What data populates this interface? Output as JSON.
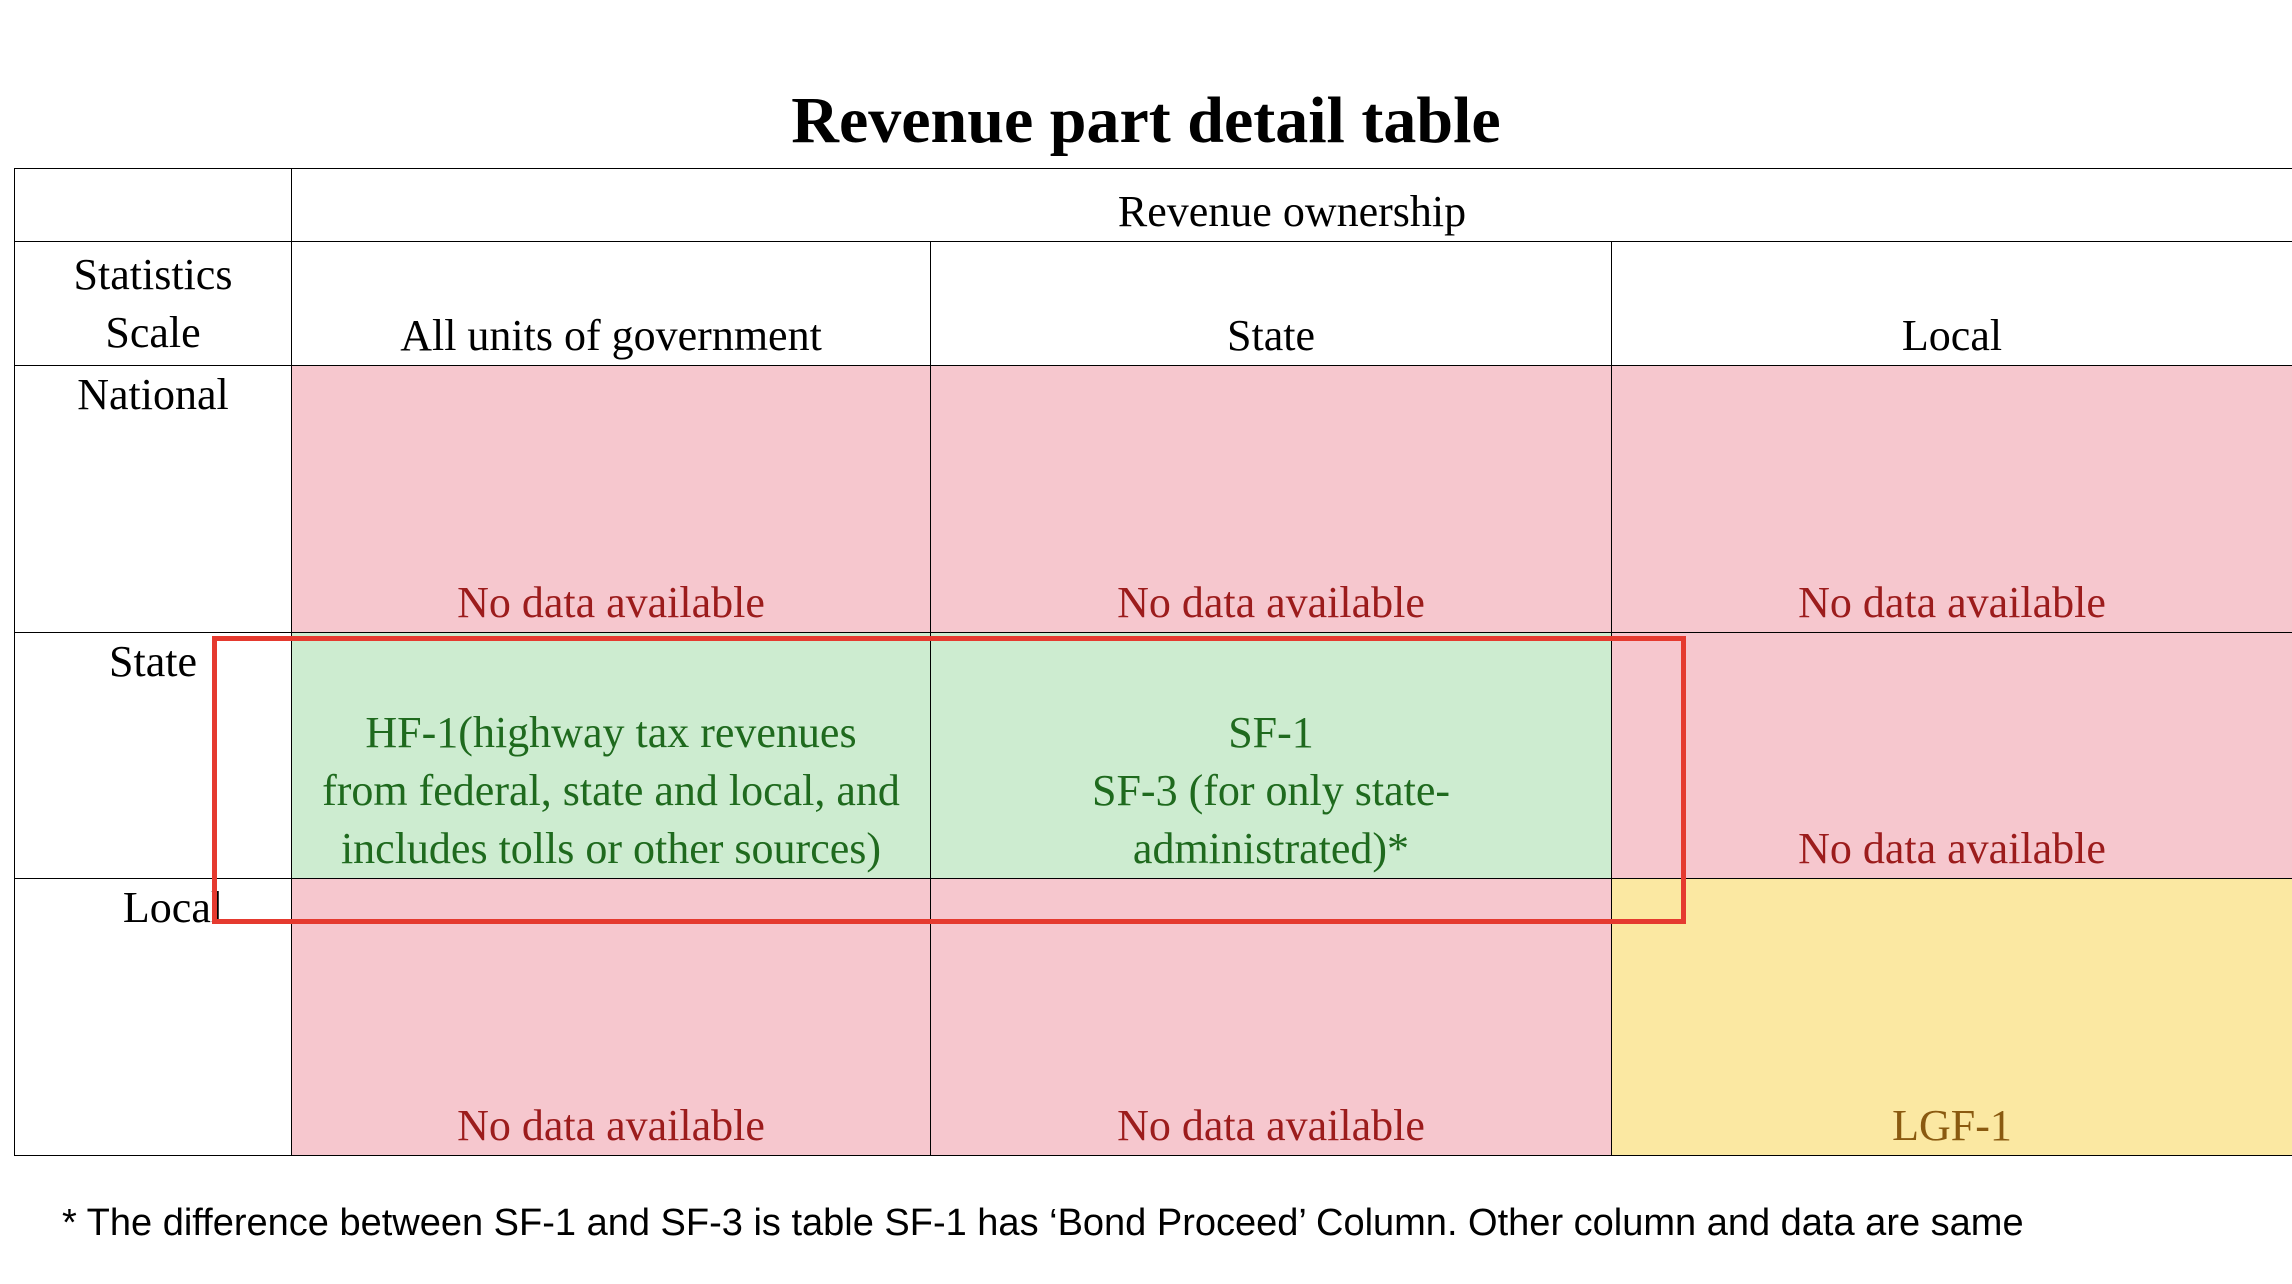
{
  "title": "Revenue part detail table",
  "table": {
    "ownership_header": "Revenue ownership",
    "scale_header": "Statistics\nScale",
    "columns": [
      "All units of government",
      "State",
      "Local"
    ],
    "rows": [
      {
        "label": "National",
        "cells": [
          "No data available",
          "No data available",
          "No data available"
        ]
      },
      {
        "label": "State",
        "cells": [
          "HF-1(highway tax revenues\nfrom federal, state and local, and\nincludes tolls or other sources)",
          "SF-1\nSF-3 (for only state-\nadministrated)*",
          "No data available"
        ]
      },
      {
        "label": "Local",
        "cells": [
          "No data available",
          "No data available",
          "LGF-1"
        ]
      }
    ]
  },
  "colors": {
    "no_data_bg": "#f6c7ce",
    "no_data_text": "#9c1c1c",
    "available_bg": "#cdecd0",
    "available_text": "#1f6a1e",
    "local_bg": "#fbe8a2",
    "local_text": "#8a5a10",
    "highlight_border": "#e53a2f"
  },
  "footnote": "* The difference between SF-1 and SF-3 is table SF-1 has ‘Bond Proceed’ Column. Other column and data are same"
}
